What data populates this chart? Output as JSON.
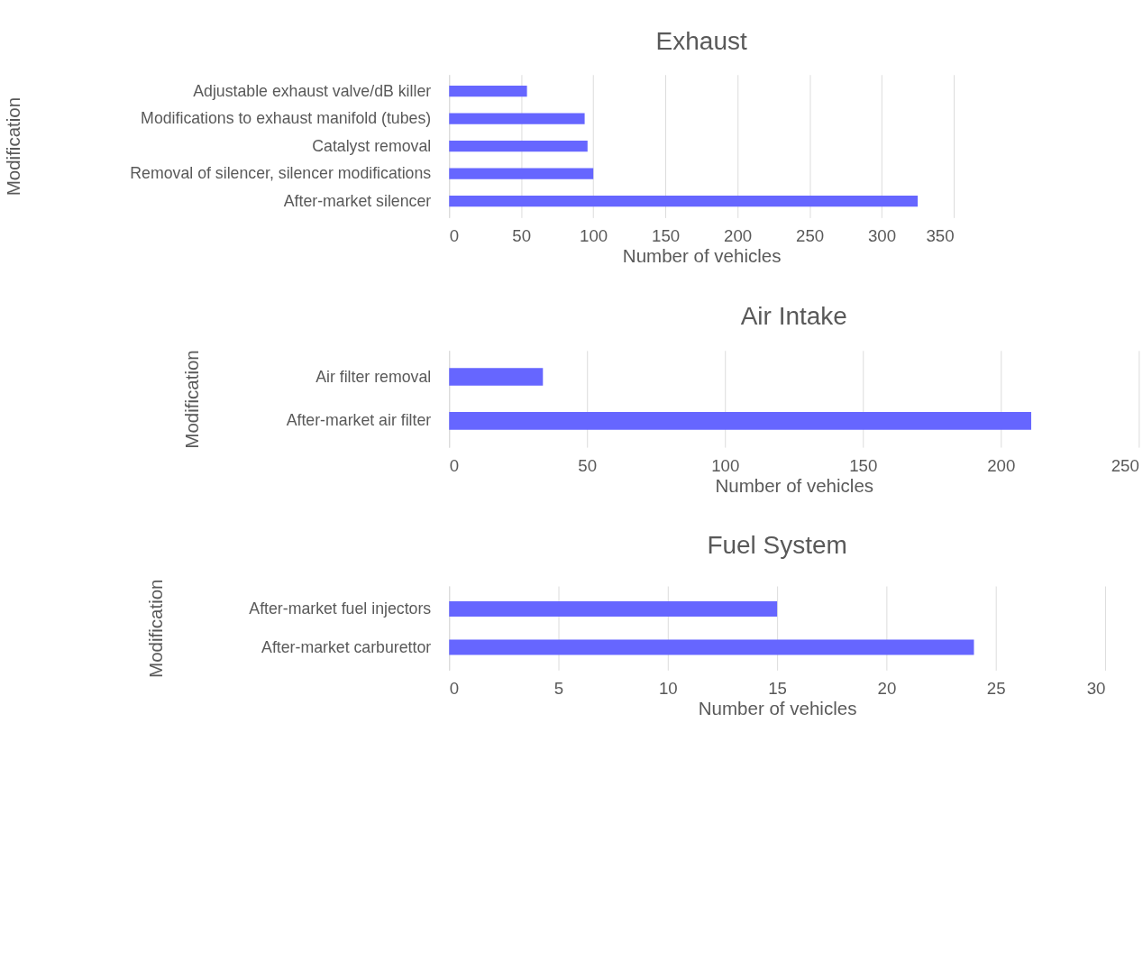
{
  "chart_data": [
    {
      "type": "bar",
      "orientation": "horizontal",
      "title": "Exhaust",
      "xlabel": "Number of vehicles",
      "ylabel": "Modification",
      "categories": [
        "Adjustable exhaust valve/dB killer",
        "Modifications to exhaust manifold (tubes)",
        "Catalyst removal",
        "Removal of silencer, silencer modifications",
        "After-market silencer"
      ],
      "values": [
        54,
        94,
        96,
        100,
        325
      ],
      "color": "#6666ff",
      "xlim": [
        0,
        350
      ],
      "xticks": [
        0,
        50,
        100,
        150,
        200,
        250,
        300,
        350
      ],
      "grid": "x"
    },
    {
      "type": "bar",
      "orientation": "horizontal",
      "title": "Air Intake",
      "xlabel": "Number of vehicles",
      "ylabel": "Modification",
      "categories": [
        "Air filter removal",
        "After-market air filter"
      ],
      "values": [
        34,
        211
      ],
      "color": "#6666ff",
      "xlim": [
        0,
        250
      ],
      "xticks": [
        0,
        50,
        100,
        150,
        200,
        250
      ],
      "grid": "x"
    },
    {
      "type": "bar",
      "orientation": "horizontal",
      "title": "Fuel System",
      "xlabel": "Number of vehicles",
      "ylabel": "Modification",
      "categories": [
        "After-market fuel injectors",
        "After-market carburettor"
      ],
      "values": [
        15,
        24
      ],
      "color": "#6666ff",
      "xlim": [
        0,
        30
      ],
      "xticks": [
        0,
        5,
        10,
        15,
        20,
        25,
        30
      ],
      "grid": "x"
    }
  ]
}
